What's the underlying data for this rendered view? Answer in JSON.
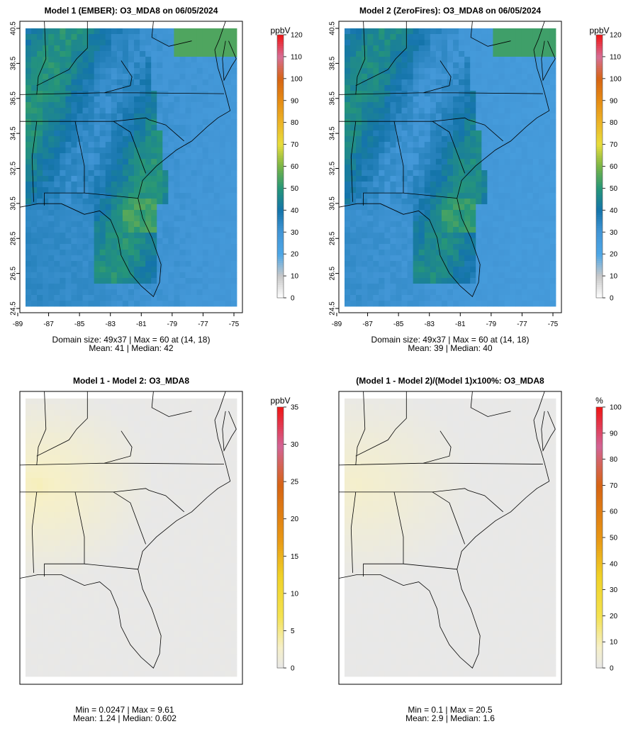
{
  "chart_data": [
    {
      "type": "heatmap",
      "title": "Model 1 (EMBER): O3_MDA8 on 06/05/2024",
      "units": "ppbV",
      "xlabel": "",
      "ylabel": "",
      "xlim": [
        -89,
        -75
      ],
      "ylim": [
        24.5,
        40.5
      ],
      "x_ticks": [
        "-89",
        "-87",
        "-85",
        "-83",
        "-81",
        "-79",
        "-77",
        "-75"
      ],
      "y_ticks": [
        "24.5",
        "26.5",
        "28.5",
        "30.5",
        "32.5",
        "34.5",
        "36.5",
        "38.5",
        "40.5"
      ],
      "colorbar": {
        "min": 0,
        "max": 120,
        "ticks": [
          "0",
          "10",
          "20",
          "30",
          "40",
          "50",
          "60",
          "70",
          "80",
          "90",
          "100",
          "110",
          "120"
        ],
        "scheme": "ozone"
      },
      "grid": {
        "cols": 37,
        "rows": 49
      },
      "domain_line": "Domain size: 49x37 | Max = 60 at (14, 18)",
      "stats_line": "Mean: 41 |  Median: 42",
      "stats": {
        "mean": 41,
        "median": 42,
        "max": 60,
        "max_cell": [
          14,
          18
        ]
      }
    },
    {
      "type": "heatmap",
      "title": "Model 2 (ZeroFires): O3_MDA8 on 06/05/2024",
      "units": "ppbV",
      "xlabel": "",
      "ylabel": "",
      "xlim": [
        -89,
        -75
      ],
      "ylim": [
        24.5,
        40.5
      ],
      "x_ticks": [
        "-89",
        "-87",
        "-85",
        "-83",
        "-81",
        "-79",
        "-77",
        "-75"
      ],
      "y_ticks": [
        "24.5",
        "26.5",
        "28.5",
        "30.5",
        "32.5",
        "34.5",
        "36.5",
        "38.5",
        "40.5"
      ],
      "colorbar": {
        "min": 0,
        "max": 120,
        "ticks": [
          "0",
          "10",
          "20",
          "30",
          "40",
          "50",
          "60",
          "70",
          "80",
          "90",
          "100",
          "110",
          "120"
        ],
        "scheme": "ozone"
      },
      "grid": {
        "cols": 37,
        "rows": 49
      },
      "domain_line": "Domain size: 49x37 | Max = 60 at (14, 18)",
      "stats_line": "Mean: 39 |  Median: 40",
      "stats": {
        "mean": 39,
        "median": 40,
        "max": 60,
        "max_cell": [
          14,
          18
        ]
      }
    },
    {
      "type": "heatmap",
      "title": "Model 1 - Model 2: O3_MDA8",
      "units": "ppbV",
      "colorbar": {
        "min": 0,
        "max": 35,
        "ticks": [
          "0",
          "5",
          "10",
          "15",
          "20",
          "25",
          "30",
          "35"
        ],
        "scheme": "diff"
      },
      "grid": {
        "cols": 37,
        "rows": 49
      },
      "minmax_line": "Min = 0.0247 | Max = 9.61",
      "stats_line": "Mean: 1.24 |  Median: 0.602",
      "stats": {
        "min": 0.0247,
        "max": 9.61,
        "mean": 1.24,
        "median": 0.602
      }
    },
    {
      "type": "heatmap",
      "title": "(Model 1 - Model 2)/(Model 1)x100%: O3_MDA8",
      "units": "%",
      "colorbar": {
        "min": 0,
        "max": 100,
        "ticks": [
          "0",
          "10",
          "20",
          "30",
          "40",
          "50",
          "60",
          "70",
          "80",
          "90",
          "100"
        ],
        "scheme": "diff"
      },
      "grid": {
        "cols": 37,
        "rows": 49
      },
      "minmax_line": "Min = 0.1 | Max = 20.5",
      "stats_line": "Mean: 2.9 |  Median: 1.6",
      "stats": {
        "min": 0.1,
        "max": 20.5,
        "mean": 2.9,
        "median": 1.6
      }
    }
  ]
}
